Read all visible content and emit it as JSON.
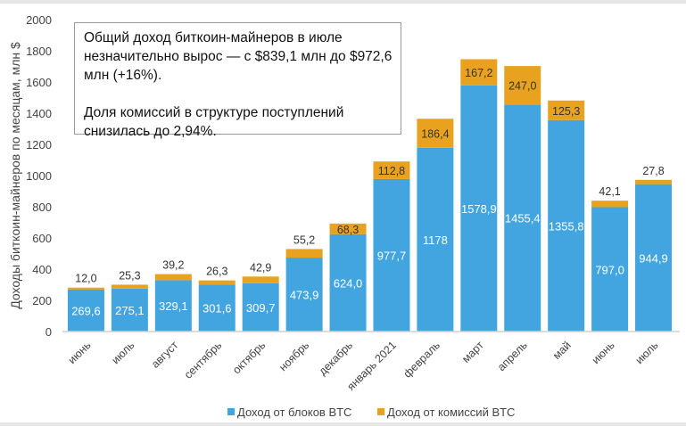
{
  "chart_data": {
    "type": "bar",
    "stacked": true,
    "categories": [
      "июнь",
      "июль",
      "август",
      "сентябрь",
      "октябрь",
      "ноябрь",
      "декабрь",
      "январь 2021",
      "февраль",
      "март",
      "апрель",
      "май",
      "июнь",
      "июль"
    ],
    "series": [
      {
        "name": "Доход от блоков BTC",
        "color": "#42a5e0",
        "values": [
          269.6,
          275.1,
          329.1,
          301.6,
          309.7,
          473.9,
          624.0,
          977.7,
          1178,
          1578.9,
          1455.4,
          1355.8,
          797.0,
          944.9
        ],
        "labels": [
          "269,6",
          "275,1",
          "329,1",
          "301,6",
          "309,7",
          "473,9",
          "624,0",
          "977,7",
          "1178",
          "1578,9",
          "1455,4",
          "1355,8",
          "797,0",
          "944,9"
        ]
      },
      {
        "name": "Доход от комиссий BTC",
        "color": "#e9a21f",
        "values": [
          12.0,
          25.3,
          39.2,
          26.3,
          42.9,
          55.2,
          68.3,
          112.8,
          186.4,
          167.2,
          247.0,
          125.3,
          42.1,
          27.8
        ],
        "labels": [
          "12,0",
          "25,3",
          "39,2",
          "26,3",
          "42,9",
          "55,2",
          "68,3",
          "112,8",
          "186,4",
          "167,2",
          "247,0",
          "125,3",
          "42,1",
          "27,8"
        ]
      }
    ],
    "ylabel": "Доходы биткоин-майнеров по месяцам, млн $",
    "ylim": [
      0,
      2000
    ],
    "yticks": [
      0,
      200,
      400,
      600,
      800,
      1000,
      1200,
      1400,
      1600,
      1800,
      2000
    ],
    "grid": false,
    "legend": "bottom"
  },
  "annotation": {
    "p1": "Общий доход биткоин-майнеров в июле незначительно вырос — с $839,1 млн до $972,6 млн (+16%).",
    "p2": "Доля комиссий в структуре поступлений снизилась до 2,94%."
  }
}
